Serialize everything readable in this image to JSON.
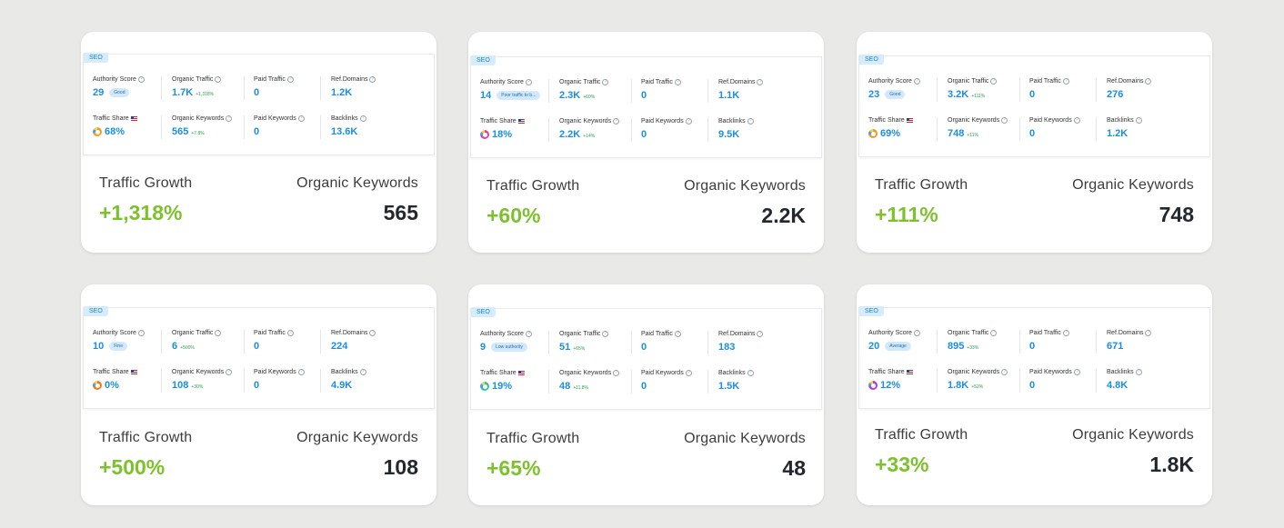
{
  "labels": {
    "seo": "SEO",
    "authority": "Authority Score",
    "organic_traffic": "Organic Traffic",
    "paid_traffic": "Paid Traffic",
    "ref_domains": "Ref.Domains",
    "traffic_share": "Traffic Share",
    "organic_keywords": "Organic Keywords",
    "paid_keywords": "Paid Keywords",
    "backlinks": "Backlinks",
    "traffic_growth": "Traffic Growth",
    "organic_keywords_big": "Organic Keywords"
  },
  "cards": [
    {
      "authority_score": "29",
      "authority_badge": "Good",
      "organic_traffic": "1.7K",
      "organic_traffic_delta": "+1,318%",
      "paid_traffic": "0",
      "ref_domains": "1.2K",
      "traffic_share": "68%",
      "organic_keywords": "565",
      "organic_keywords_delta": "+7.8%",
      "paid_keywords": "0",
      "backlinks": "13.6K",
      "traffic_growth": "+1,318%",
      "organic_keywords_big": "565",
      "donut_color": "#f59a23"
    },
    {
      "authority_score": "14",
      "authority_badge": "Poor traffic to b...",
      "organic_traffic": "2.3K",
      "organic_traffic_delta": "+60%",
      "paid_traffic": "0",
      "ref_domains": "1.1K",
      "traffic_share": "18%",
      "organic_keywords": "2.2K",
      "organic_keywords_delta": "+14%",
      "paid_keywords": "0",
      "backlinks": "9.5K",
      "traffic_growth": "+60%",
      "organic_keywords_big": "2.2K",
      "donut_color": "#e0469a"
    },
    {
      "authority_score": "23",
      "authority_badge": "Good",
      "organic_traffic": "3.2K",
      "organic_traffic_delta": "+111%",
      "paid_traffic": "0",
      "ref_domains": "276",
      "traffic_share": "69%",
      "organic_keywords": "748",
      "organic_keywords_delta": "+11%",
      "paid_keywords": "0",
      "backlinks": "1.2K",
      "traffic_growth": "+111%",
      "organic_keywords_big": "748",
      "donut_color": "#f59a23"
    },
    {
      "authority_score": "10",
      "authority_badge": "Fine",
      "organic_traffic": "6",
      "organic_traffic_delta": "+500%",
      "paid_traffic": "0",
      "ref_domains": "224",
      "traffic_share": "0%",
      "organic_keywords": "108",
      "organic_keywords_delta": "+30%",
      "paid_keywords": "0",
      "backlinks": "4.9K",
      "traffic_growth": "+500%",
      "organic_keywords_big": "108",
      "donut_color": "#f07a1a"
    },
    {
      "authority_score": "9",
      "authority_badge": "Low authority",
      "organic_traffic": "51",
      "organic_traffic_delta": "+65%",
      "paid_traffic": "0",
      "ref_domains": "183",
      "traffic_share": "19%",
      "organic_keywords": "48",
      "organic_keywords_delta": "+11.8%",
      "paid_keywords": "0",
      "backlinks": "1.5K",
      "traffic_growth": "+65%",
      "organic_keywords_big": "48",
      "donut_color": "#2ec4a0"
    },
    {
      "authority_score": "20",
      "authority_badge": "Average",
      "organic_traffic": "895",
      "organic_traffic_delta": "+33%",
      "paid_traffic": "0",
      "ref_domains": "671",
      "traffic_share": "12%",
      "organic_keywords": "1.8K",
      "organic_keywords_delta": "+52%",
      "paid_keywords": "0",
      "backlinks": "4.8K",
      "traffic_growth": "+33%",
      "organic_keywords_big": "1.8K",
      "donut_color": "#b43bd6"
    }
  ]
}
